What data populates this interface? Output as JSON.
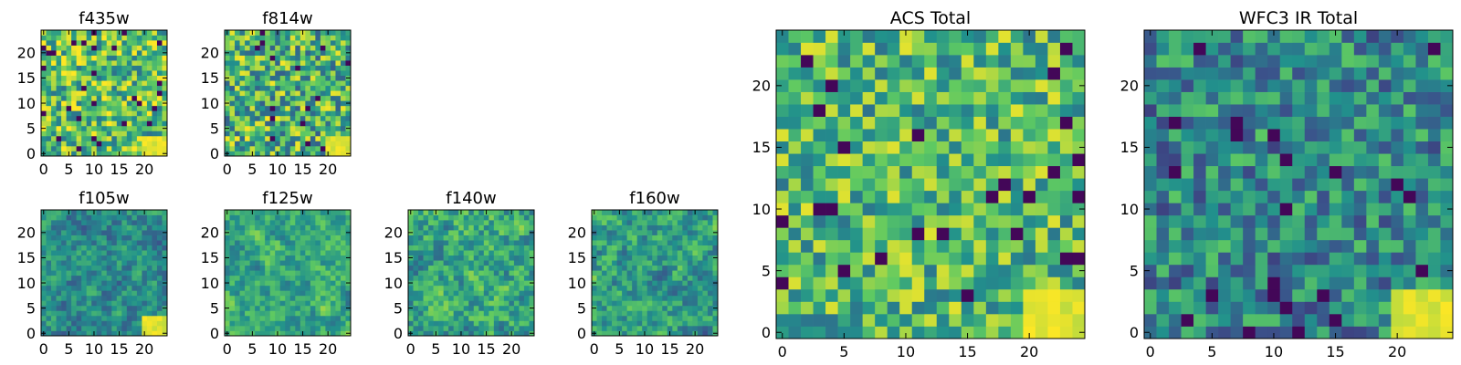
{
  "figure": {
    "grid_size": 25,
    "colormap": "viridis",
    "colormap_stops": [
      "#440154",
      "#3b528b",
      "#21918c",
      "#5ec962",
      "#fde725"
    ]
  },
  "chart_data": [
    {
      "type": "heatmap",
      "title": "f435w",
      "xticks": [
        0,
        5,
        10,
        15,
        20
      ],
      "yticks": [
        0,
        5,
        10,
        15,
        20
      ],
      "xlim": [
        0,
        25
      ],
      "ylim": [
        0,
        25
      ],
      "data_note": "per-pixel values not recoverable; rendered as seeded pseudo-random field",
      "seed": 11,
      "mean": 0.72,
      "spread": 0.34,
      "smooth": 0,
      "hot_corner": "bottom-right"
    },
    {
      "type": "heatmap",
      "title": "f814w",
      "xticks": [
        0,
        5,
        10,
        15,
        20
      ],
      "yticks": [
        0,
        5,
        10,
        15,
        20
      ],
      "xlim": [
        0,
        25
      ],
      "ylim": [
        0,
        25
      ],
      "seed": 23,
      "mean": 0.66,
      "spread": 0.36,
      "smooth": 0,
      "hot_corner": "bottom-right"
    },
    {
      "type": "heatmap",
      "title": "f105w",
      "xticks": [
        0,
        5,
        10,
        15,
        20
      ],
      "yticks": [
        0,
        5,
        10,
        15,
        20
      ],
      "xlim": [
        0,
        25
      ],
      "ylim": [
        0,
        25
      ],
      "seed": 37,
      "mean": 0.48,
      "spread": 0.32,
      "smooth": 1,
      "hot_corner": "bottom-right"
    },
    {
      "type": "heatmap",
      "title": "f125w",
      "xticks": [
        0,
        5,
        10,
        15,
        20
      ],
      "yticks": [
        0,
        5,
        10,
        15,
        20
      ],
      "xlim": [
        0,
        25
      ],
      "ylim": [
        0,
        25
      ],
      "seed": 51,
      "mean": 0.6,
      "spread": 0.32,
      "smooth": 1,
      "hot_corner": "none"
    },
    {
      "type": "heatmap",
      "title": "f140w",
      "xticks": [
        0,
        5,
        10,
        15,
        20
      ],
      "yticks": [
        0,
        5,
        10,
        15,
        20
      ],
      "xlim": [
        0,
        25
      ],
      "ylim": [
        0,
        25
      ],
      "seed": 67,
      "mean": 0.6,
      "spread": 0.38,
      "smooth": 1,
      "hot_corner": "none"
    },
    {
      "type": "heatmap",
      "title": "f160w",
      "xticks": [
        0,
        5,
        10,
        15,
        20
      ],
      "yticks": [
        0,
        5,
        10,
        15,
        20
      ],
      "xlim": [
        0,
        25
      ],
      "ylim": [
        0,
        25
      ],
      "seed": 83,
      "mean": 0.56,
      "spread": 0.36,
      "smooth": 1,
      "hot_corner": "none"
    },
    {
      "type": "heatmap",
      "title": "ACS Total",
      "xticks": [
        0,
        5,
        10,
        15,
        20
      ],
      "yticks": [
        0,
        5,
        10,
        15,
        20
      ],
      "xlim": [
        0,
        25
      ],
      "ylim": [
        0,
        25
      ],
      "seed": 97,
      "mean": 0.68,
      "spread": 0.3,
      "smooth": 0,
      "hot_corner": "bottom-right"
    },
    {
      "type": "heatmap",
      "title": "WFC3 IR Total",
      "xticks": [
        0,
        5,
        10,
        15,
        20
      ],
      "yticks": [
        0,
        5,
        10,
        15,
        20
      ],
      "xlim": [
        0,
        25
      ],
      "ylim": [
        0,
        25
      ],
      "seed": 113,
      "mean": 0.48,
      "spread": 0.28,
      "smooth": 0,
      "hot_corner": "bottom-right"
    }
  ]
}
